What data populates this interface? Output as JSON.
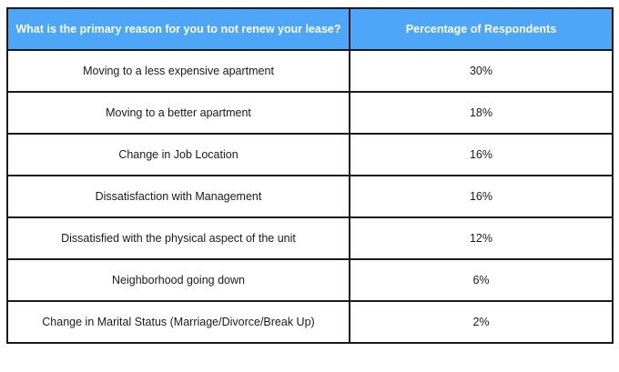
{
  "chart_data": {
    "type": "table",
    "columns": [
      "What is the primary reason for you to not renew your lease?",
      "Percentage of Respondents"
    ],
    "rows": [
      {
        "reason": "Moving to a less expensive apartment",
        "percentage": "30%"
      },
      {
        "reason": "Moving to a better apartment",
        "percentage": "18%"
      },
      {
        "reason": "Change in Job Location",
        "percentage": "16%"
      },
      {
        "reason": "Dissatisfaction with Management",
        "percentage": "16%"
      },
      {
        "reason": "Dissatisfied with the physical aspect of the unit",
        "percentage": "12%"
      },
      {
        "reason": "Neighborhood going down",
        "percentage": "6%"
      },
      {
        "reason": "Change in Marital Status (Marriage/Divorce/Break Up)",
        "percentage": "2%"
      }
    ],
    "header_color": "#4da6f7",
    "header_text_color": "#ffffff",
    "border_color": "#1a1a1a"
  }
}
